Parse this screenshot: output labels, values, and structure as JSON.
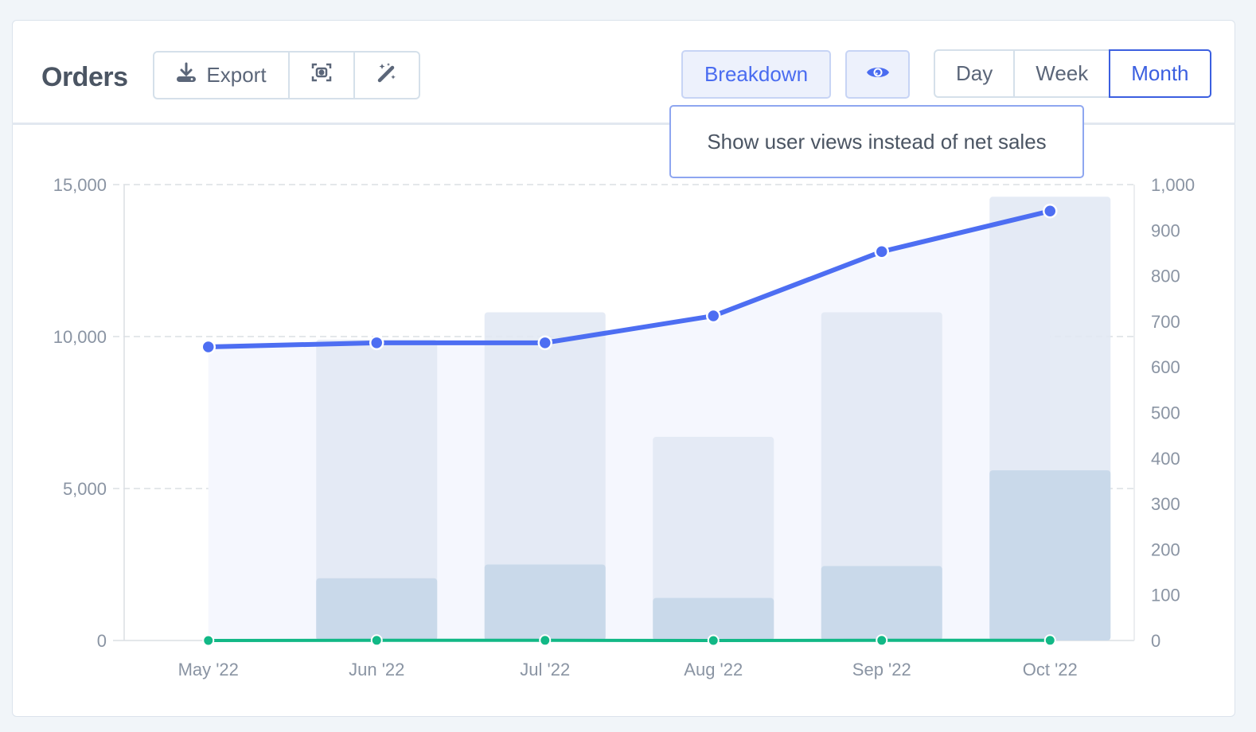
{
  "header": {
    "title": "Orders",
    "export_label": "Export",
    "breakdown_label": "Breakdown",
    "periods": [
      {
        "label": "Day",
        "active": false
      },
      {
        "label": "Week",
        "active": false
      },
      {
        "label": "Month",
        "active": true
      }
    ],
    "tooltip": "Show user views instead of net sales",
    "icons": [
      "download-icon",
      "screenshot-icon",
      "magic-wand-icon",
      "eye-icon"
    ]
  },
  "colors": {
    "accent": "#4a6cf0",
    "views_line": "#4d6ef2",
    "green_line": "#12b886",
    "bar_total": "#e1e8f3",
    "bar_part": "#c9d9ea",
    "area_fill": "#f5f7fe"
  },
  "chart_data": {
    "type": "bar",
    "categories": [
      "May '22",
      "Jun '22",
      "Jul '22",
      "Aug '22",
      "Sep '22",
      "Oct '22"
    ],
    "left_axis": {
      "ticks": [
        "0",
        "5,000",
        "10,000",
        "15,000"
      ],
      "range": [
        0,
        15000
      ]
    },
    "right_axis": {
      "ticks": [
        "0",
        "100",
        "200",
        "300",
        "400",
        "500",
        "600",
        "700",
        "800",
        "900",
        "1,000"
      ],
      "range": [
        0,
        1000
      ]
    },
    "grid": true,
    "series": [
      {
        "type": "bar",
        "axis": "left",
        "values": [
          0,
          9900,
          10800,
          6700,
          10800,
          14600
        ]
      },
      {
        "type": "bar",
        "axis": "left",
        "values": [
          0,
          2050,
          2500,
          1400,
          2450,
          5600
        ]
      },
      {
        "type": "area-line",
        "axis": "right",
        "values": [
          644,
          653,
          653,
          712,
          853,
          942
        ]
      },
      {
        "type": "line",
        "axis": "left",
        "values": [
          0,
          5,
          5,
          0,
          5,
          5
        ]
      }
    ]
  }
}
